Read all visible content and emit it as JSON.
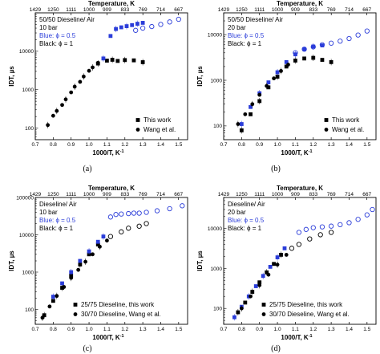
{
  "chart_data": [
    {
      "panel": "a",
      "type": "scatter",
      "caption": "(a)",
      "xlabel": "1000/T, K",
      "xlabel_sup": "-1",
      "ylabel": "IDT, µs",
      "top_axis_label": "Temperature, K",
      "top_ticks": [
        "1429",
        "1250",
        "1111",
        "1000",
        "909",
        "833",
        "769",
        "714",
        "667"
      ],
      "xlim": [
        0.7,
        1.55
      ],
      "ylim_log": [
        50,
        100000
      ],
      "x_ticks": [
        "0.7",
        "0.8",
        "0.9",
        "1.0",
        "1.1",
        "1.2",
        "1.3",
        "1.4",
        "1.5"
      ],
      "y_ticks": [
        "100",
        "1000",
        "10000"
      ],
      "info": [
        "50/50 Dieseline/ Air",
        "10 bar"
      ],
      "blue_label": "Blue: ϕ = 0.5",
      "black_label": "Black: ϕ = 1",
      "legend": [
        "This work",
        "Wang et al."
      ],
      "series": [
        {
          "name": "This work",
          "phi": "1",
          "color": "#000000",
          "marker": "square",
          "x": [
            1.05,
            1.1,
            1.13,
            1.16,
            1.2,
            1.25,
            1.3
          ],
          "y": [
            4800,
            5700,
            6000,
            5600,
            5900,
            5800,
            5200
          ]
        },
        {
          "name": "This work",
          "phi": "0.5",
          "color": "#2b3dd9",
          "marker": "square",
          "x": [
            1.08,
            1.12,
            1.15,
            1.18,
            1.21,
            1.24,
            1.27,
            1.3
          ],
          "y": [
            6500,
            25000,
            38000,
            42000,
            45000,
            48000,
            52000,
            55000
          ]
        },
        {
          "name": "Wang et al.",
          "phi": "1",
          "color": "#000000",
          "marker": "circle",
          "x": [
            0.77,
            0.8,
            0.82,
            0.85,
            0.87,
            0.9,
            0.92,
            0.95,
            0.97,
            1.0,
            1.02,
            1.05
          ],
          "y": [
            120,
            210,
            280,
            400,
            560,
            850,
            1200,
            1600,
            2200,
            3100,
            3800,
            5000
          ]
        },
        {
          "name": "Wang et al.",
          "phi": "0.5",
          "color": "#2b3dd9",
          "marker": "circle-open",
          "x": [
            1.26,
            1.3,
            1.35,
            1.4,
            1.45,
            1.5
          ],
          "y": [
            35000,
            40000,
            44000,
            50000,
            58000,
            68000
          ]
        }
      ]
    },
    {
      "panel": "b",
      "type": "scatter",
      "caption": "(b)",
      "xlabel": "1000/T, K",
      "xlabel_sup": "-1",
      "ylabel": "IDT, µs",
      "top_axis_label": "Temperature, K",
      "top_ticks": [
        "1429",
        "1250",
        "1111",
        "1000",
        "909",
        "833",
        "769",
        "714",
        "667"
      ],
      "xlim": [
        0.7,
        1.55
      ],
      "ylim_log": [
        50,
        30000
      ],
      "x_ticks": [
        "0.7",
        "0.8",
        "0.9",
        "1.0",
        "1.1",
        "1.2",
        "1.3",
        "1.4",
        "1.5"
      ],
      "y_ticks": [
        "100",
        "1000",
        "10000"
      ],
      "info": [
        "50/50 Dieseline/ Air",
        "20 bar"
      ],
      "blue_label": "Blue: ϕ = 0.5",
      "black_label": "Black: ϕ = 1",
      "legend": [
        "This work",
        "Wang et al."
      ],
      "series": [
        {
          "name": "This work",
          "phi": "1",
          "color": "#000000",
          "marker": "square",
          "x": [
            0.8,
            0.85,
            0.9,
            0.95,
            1.0,
            1.05,
            1.1,
            1.15,
            1.2,
            1.25,
            1.3
          ],
          "y": [
            80,
            180,
            350,
            700,
            1200,
            2000,
            2700,
            3000,
            3100,
            2800,
            2500
          ]
        },
        {
          "name": "This work",
          "phi": "0.5",
          "color": "#2b3dd9",
          "marker": "square",
          "x": [
            0.8,
            0.85,
            0.9,
            0.95,
            1.0,
            1.05,
            1.1,
            1.15,
            1.2,
            1.25
          ],
          "y": [
            110,
            260,
            520,
            900,
            1500,
            2500,
            3700,
            4800,
            5500,
            5800
          ]
        },
        {
          "name": "Wang et al.",
          "phi": "1",
          "color": "#000000",
          "marker": "circle",
          "x": [
            0.78,
            0.82,
            0.86,
            0.9,
            0.94,
            0.98,
            1.02,
            1.06
          ],
          "y": [
            110,
            180,
            300,
            480,
            750,
            1100,
            1600,
            2200
          ]
        },
        {
          "name": "Wang et al.",
          "phi": "0.5",
          "color": "#2b3dd9",
          "marker": "circle-open",
          "x": [
            1.1,
            1.15,
            1.2,
            1.25,
            1.3,
            1.35,
            1.4,
            1.45,
            1.5
          ],
          "y": [
            4000,
            4800,
            5400,
            6000,
            6500,
            7200,
            8200,
            9800,
            12000
          ]
        }
      ]
    },
    {
      "panel": "c",
      "type": "scatter",
      "caption": "(c)",
      "xlabel": "1000/T, K",
      "xlabel_sup": "-1",
      "ylabel": "IDT, µs",
      "top_axis_label": "Temperature, K",
      "top_ticks": [
        "1429",
        "1250",
        "1111",
        "1000",
        "909",
        "833",
        "769",
        "714",
        "667"
      ],
      "xlim": [
        0.7,
        1.55
      ],
      "ylim_log": [
        40,
        100000
      ],
      "x_ticks": [
        "0.7",
        "0.8",
        "0.9",
        "1.0",
        "1.1",
        "1.2",
        "1.3",
        "1.4",
        "1.5"
      ],
      "y_ticks": [
        "100",
        "1000",
        "10000",
        "100000"
      ],
      "info": [
        "Dieseline/ Air",
        "10 bar"
      ],
      "blue_label": "Blue: ϕ = 0.5",
      "black_label": "Black: ϕ = 1",
      "legend": [
        "25/75 Dieseline, this work",
        "30/70 Dieseline, Wang et al."
      ],
      "series": [
        {
          "name": "25/75 Dieseline, this work",
          "phi": "1",
          "color": "#000000",
          "marker": "square",
          "x": [
            0.75,
            0.8,
            0.85,
            0.9,
            0.95,
            1.0,
            1.05
          ],
          "y": [
            70,
            170,
            380,
            800,
            1600,
            3000,
            5500
          ]
        },
        {
          "name": "25/75 Dieseline, this work",
          "phi": "0.5",
          "color": "#2b3dd9",
          "marker": "square",
          "x": [
            0.8,
            0.85,
            0.9,
            0.95,
            1.0,
            1.05,
            1.08
          ],
          "y": [
            220,
            500,
            1000,
            2000,
            3600,
            6500,
            9000
          ]
        },
        {
          "name": "30/70 Dieseline, Wang et al.",
          "phi": "1",
          "color": "#000000",
          "marker": "circle",
          "x": [
            0.74,
            0.78,
            0.82,
            0.86,
            0.9,
            0.94,
            0.98,
            1.02,
            1.06,
            1.1
          ],
          "y": [
            60,
            120,
            230,
            400,
            700,
            1150,
            1900,
            3000,
            4800,
            7000
          ]
        },
        {
          "name": "30/70 Dieseline, Wang et al.",
          "phi": "1",
          "color": "#000000",
          "marker": "circle-open",
          "x": [
            1.12,
            1.18,
            1.22,
            1.28,
            1.32
          ],
          "y": [
            9000,
            12000,
            15000,
            17000,
            20000
          ]
        },
        {
          "name": "30/70 Dieseline, Wang et al.",
          "phi": "0.5",
          "color": "#2b3dd9",
          "marker": "circle-open",
          "x": [
            1.12,
            1.15,
            1.18,
            1.22,
            1.25,
            1.28,
            1.32,
            1.38,
            1.45,
            1.52
          ],
          "y": [
            30000,
            35000,
            36000,
            37000,
            38000,
            38000,
            40000,
            44000,
            50000,
            60000
          ]
        }
      ]
    },
    {
      "panel": "d",
      "type": "scatter",
      "caption": "(d)",
      "xlabel": "1000/T, K",
      "xlabel_sup": "-1",
      "ylabel": "IDT, µs",
      "top_axis_label": "Temperature, K",
      "top_ticks": [
        "1429",
        "1250",
        "1111",
        "1000",
        "909",
        "833",
        "769",
        "714",
        "667"
      ],
      "xlim": [
        0.7,
        1.55
      ],
      "ylim_log": [
        40,
        60000
      ],
      "x_ticks": [
        "0.7",
        "0.8",
        "0.9",
        "1.0",
        "1.1",
        "1.2",
        "1.3",
        "1.4",
        "1.5"
      ],
      "y_ticks": [
        "100",
        "1000",
        "10000"
      ],
      "info": [
        "Dieseline/ Air",
        "20 bar"
      ],
      "blue_label": "Blue: ϕ = 0.5",
      "black_label": "Black: ϕ = 1",
      "legend": [
        "25/75 Dieseline, this work",
        "30/70 Dieseline, Wang et al."
      ],
      "series": [
        {
          "name": "25/75 Dieseline, this work",
          "phi": "1",
          "color": "#000000",
          "marker": "square",
          "x": [
            0.78,
            0.82,
            0.86,
            0.9,
            0.94,
            0.98,
            1.02
          ],
          "y": [
            80,
            140,
            260,
            450,
            800,
            1300,
            2200
          ]
        },
        {
          "name": "25/75 Dieseline, this work",
          "phi": "0.5",
          "color": "#2b3dd9",
          "marker": "square",
          "x": [
            0.76,
            0.8,
            0.84,
            0.88,
            0.92,
            0.96,
            1.0,
            1.04
          ],
          "y": [
            60,
            110,
            200,
            360,
            650,
            1100,
            1900,
            3200
          ]
        },
        {
          "name": "30/70 Dieseline, Wang et al.",
          "phi": "1",
          "color": "#000000",
          "marker": "circle",
          "x": [
            0.8,
            0.85,
            0.9,
            0.95,
            1.0,
            1.05
          ],
          "y": [
            100,
            200,
            380,
            700,
            1250,
            2200
          ]
        },
        {
          "name": "30/70 Dieseline, Wang et al.",
          "phi": "1",
          "color": "#000000",
          "marker": "circle-open",
          "x": [
            1.08,
            1.12,
            1.18,
            1.24,
            1.3
          ],
          "y": [
            3200,
            4000,
            5500,
            7000,
            8000
          ]
        },
        {
          "name": "30/70 Dieseline, Wang et al.",
          "phi": "0.5",
          "color": "#2b3dd9",
          "marker": "circle-open",
          "x": [
            1.12,
            1.16,
            1.2,
            1.25,
            1.3,
            1.35,
            1.4,
            1.45,
            1.5,
            1.53
          ],
          "y": [
            8000,
            9500,
            10500,
            11000,
            11500,
            12500,
            14000,
            17000,
            22000,
            30000
          ]
        }
      ]
    }
  ]
}
